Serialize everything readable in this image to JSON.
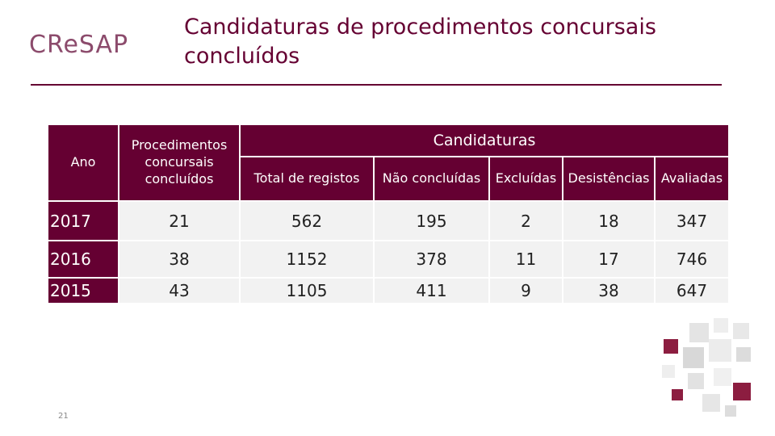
{
  "header": {
    "logo": "CReSAP",
    "title_lines": [
      "Candidaturas de procedimentos concursais",
      "concluídos"
    ]
  },
  "table": {
    "columns": [
      "Ano",
      "Procedimentos concursais concluídos"
    ],
    "group": "Candidaturas",
    "subcolumns": [
      "Total de registos",
      "Não concluídas",
      "Excluídas",
      "Desistências",
      "Avaliadas"
    ],
    "rows": [
      [
        2017,
        21,
        562,
        195,
        2,
        18,
        347
      ],
      [
        2016,
        38,
        1152,
        378,
        11,
        17,
        746
      ],
      [
        2015,
        43,
        1105,
        411,
        9,
        38,
        647
      ]
    ]
  },
  "page_number": "21"
}
